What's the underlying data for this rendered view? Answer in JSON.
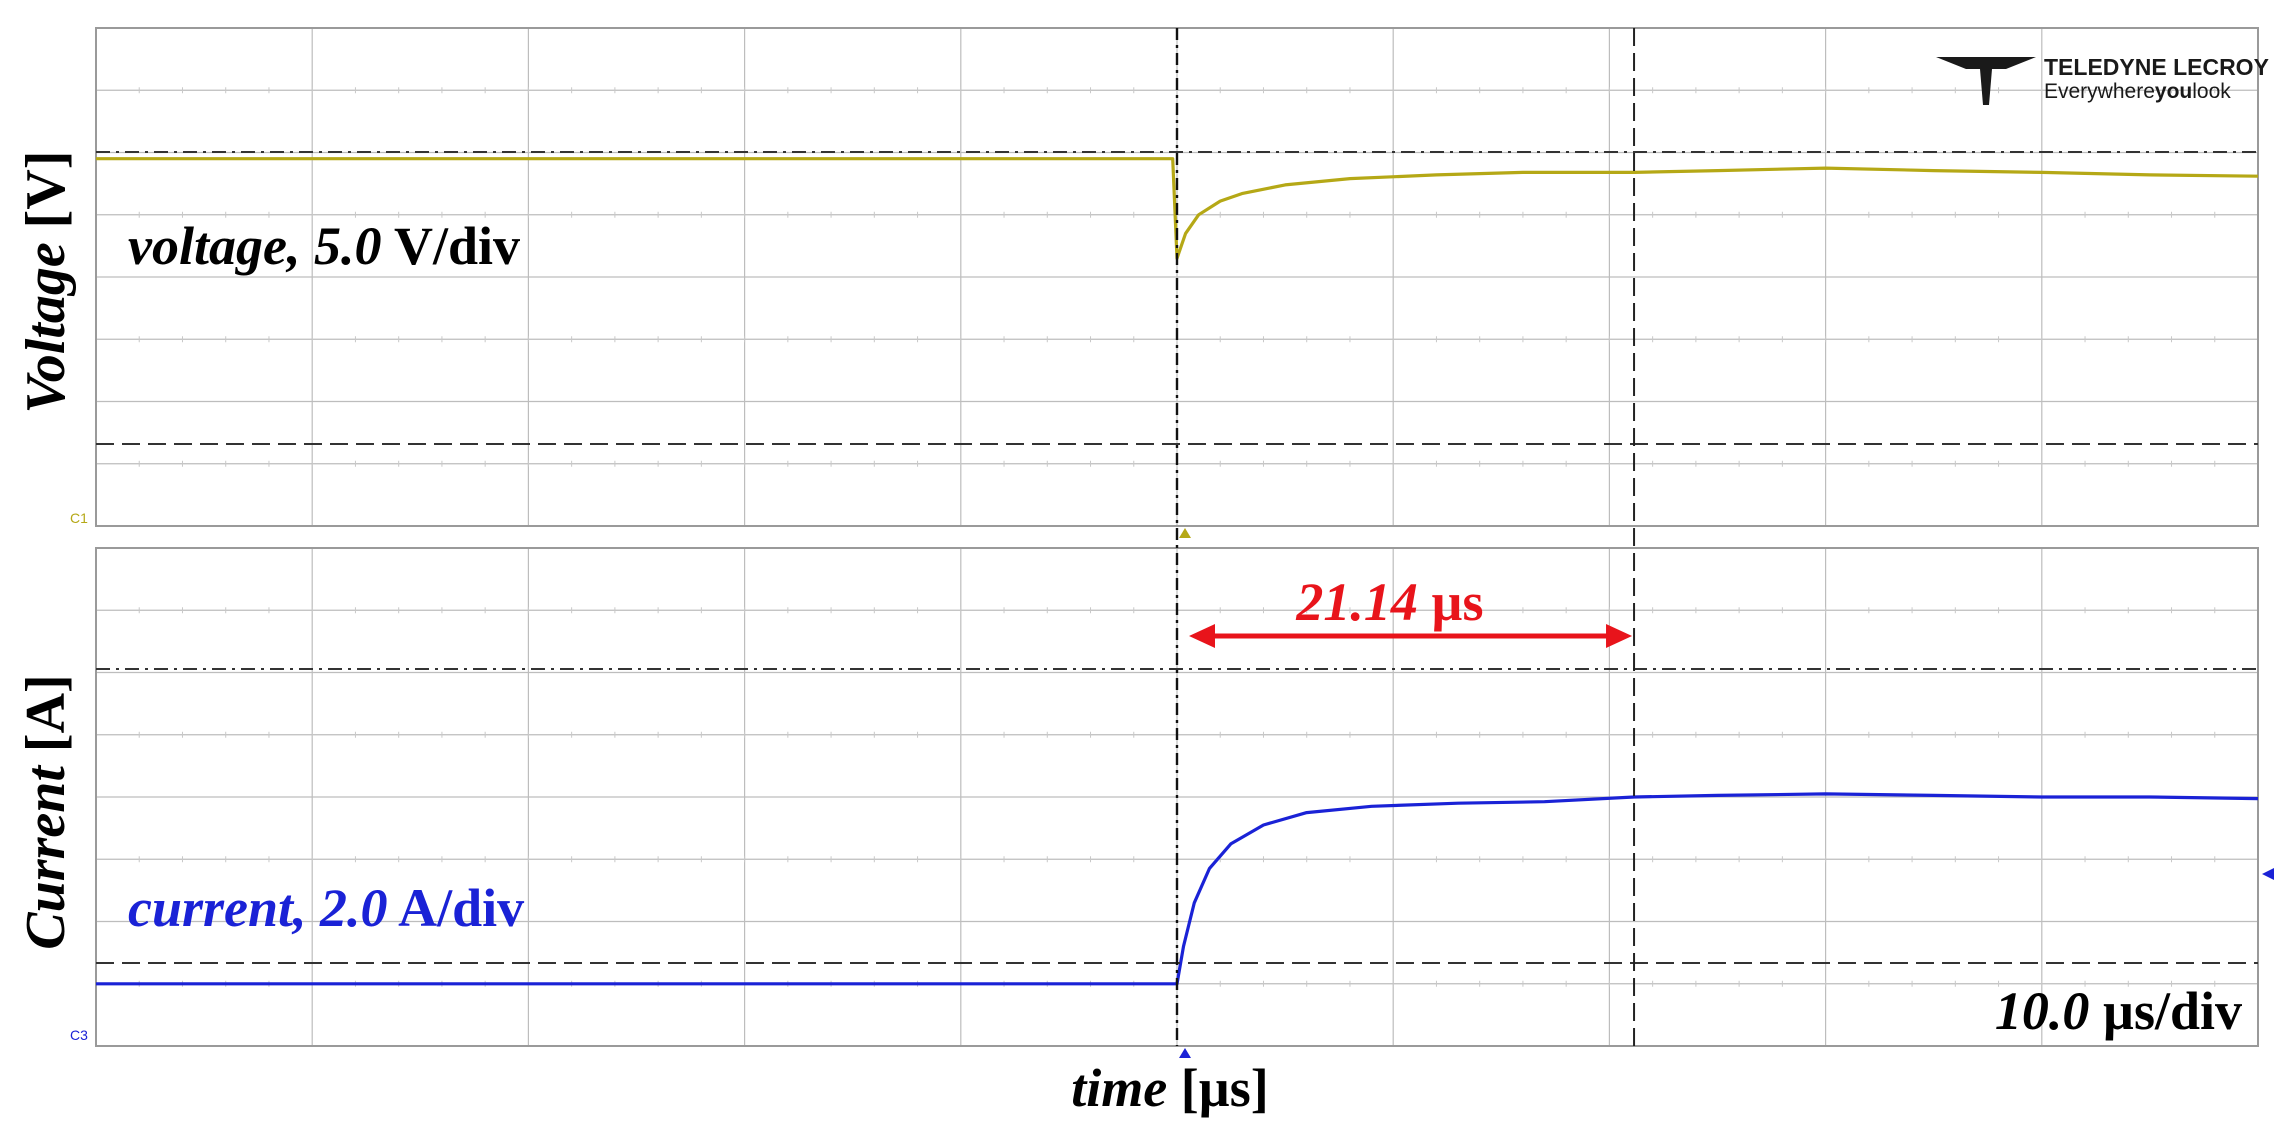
{
  "brand": {
    "name": "TELEDYNE LECROY",
    "tagline_prefix": "Everywhere",
    "tagline_bold": "you",
    "tagline_suffix": "look"
  },
  "panels": {
    "voltage": {
      "axis_label_italic": "Voltage",
      "axis_label_rest": " [V]",
      "trace_label_italic": "voltage, 5.0",
      "trace_label_rest": " V/div",
      "channel_marker": "C1",
      "color": "#b5a816"
    },
    "current": {
      "axis_label_italic": "Current",
      "axis_label_rest": " [A]",
      "trace_label_italic": "current, 2.0",
      "trace_label_rest": " A/div",
      "channel_marker": "C3",
      "color": "#1a22d6"
    }
  },
  "timebase": {
    "value_italic": "10.0",
    "unit": " µs/div"
  },
  "x_axis": {
    "label_italic": "time",
    "label_rest": " [µs]"
  },
  "measurement": {
    "value_italic": "21.14",
    "unit": " µs",
    "color": "#e8141b"
  },
  "chart_data": [
    {
      "type": "line",
      "series": [
        {
          "name": "voltage",
          "color": "#b5a816",
          "x": [
            -50,
            -0.2,
            0,
            0.4,
            1,
            2,
            3,
            5,
            8,
            12,
            16,
            21.14,
            25,
            30,
            35,
            40,
            45,
            50
          ],
          "y": [
            9.5,
            9.5,
            1.5,
            3.5,
            5.0,
            6.1,
            6.7,
            7.4,
            7.9,
            8.2,
            8.4,
            8.4,
            8.55,
            8.75,
            8.55,
            8.4,
            8.2,
            8.1
          ]
        }
      ],
      "xlim": [
        -50,
        50
      ],
      "ylim": [
        -20,
        20
      ],
      "scale": "5.0 V/div"
    },
    {
      "type": "line",
      "series": [
        {
          "name": "current",
          "color": "#1a22d6",
          "x": [
            -50,
            0,
            0.3,
            0.8,
            1.5,
            2.5,
            4,
            6,
            9,
            13,
            17,
            21.14,
            25,
            30,
            35,
            40,
            45,
            50
          ],
          "y": [
            -6.0,
            -6.0,
            -4.8,
            -3.4,
            -2.3,
            -1.5,
            -0.9,
            -0.5,
            -0.3,
            -0.2,
            -0.15,
            0.0,
            0.05,
            0.1,
            0.05,
            0.0,
            0.0,
            -0.05
          ]
        }
      ],
      "xlim": [
        -50,
        50
      ],
      "ylim": [
        -8,
        8
      ],
      "scale": "2.0 A/div"
    }
  ]
}
